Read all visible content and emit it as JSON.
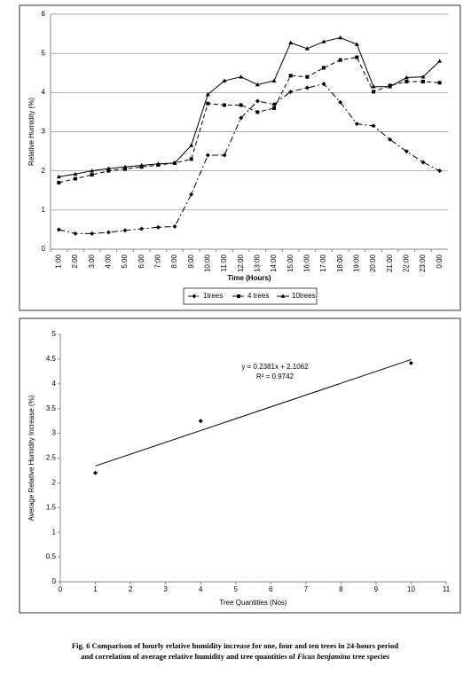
{
  "chart_data": [
    {
      "type": "line",
      "y_label": "Relative Humidity (%)",
      "x_label": "Time (Hours)",
      "categories": [
        "1:00",
        "2:00",
        "3:00",
        "4:00",
        "5:00",
        "6:00",
        "7:00",
        "8:00",
        "9:00",
        "10:00",
        "11:00",
        "12:00",
        "13:00",
        "14:00",
        "15:00",
        "16:00",
        "17:00",
        "18:00",
        "19:00",
        "20:00",
        "21:00",
        "22:00",
        "23:00",
        "0:00"
      ],
      "series": [
        {
          "name": "1trees",
          "color": "#000000",
          "dash": "7 3 2 3",
          "marker": "diamond",
          "values": [
            0.5,
            0.4,
            0.4,
            0.43,
            0.48,
            0.52,
            0.56,
            0.58,
            1.4,
            2.4,
            2.4,
            3.35,
            3.78,
            3.7,
            4.02,
            4.12,
            4.22,
            3.75,
            3.2,
            3.15,
            2.8,
            2.5,
            2.22,
            2.0
          ]
        },
        {
          "name": "4 trees",
          "color": "#000000",
          "dash": "5 3",
          "marker": "square",
          "values": [
            1.7,
            1.8,
            1.9,
            2.0,
            2.05,
            2.1,
            2.15,
            2.2,
            2.3,
            3.72,
            3.68,
            3.68,
            3.5,
            3.6,
            4.43,
            4.4,
            4.63,
            4.83,
            4.9,
            4.02,
            4.18,
            4.28,
            4.28,
            4.25
          ]
        },
        {
          "name": "10trees",
          "color": "#000000",
          "dash": "none",
          "marker": "triangle",
          "values": [
            1.85,
            1.92,
            2.0,
            2.06,
            2.1,
            2.14,
            2.18,
            2.2,
            2.65,
            3.95,
            4.3,
            4.4,
            4.2,
            4.3,
            5.27,
            5.12,
            5.3,
            5.4,
            5.23,
            4.15,
            4.15,
            4.38,
            4.4,
            4.8
          ]
        }
      ],
      "ylim": [
        0,
        6
      ],
      "yticks": [
        0,
        1,
        2,
        3,
        4,
        5,
        6
      ],
      "grid": true,
      "legend": "bottom"
    },
    {
      "type": "scatter",
      "y_label": "Average Relative Humidity Increase (%)",
      "x_label": "Tree Quantities (Nos)",
      "x": [
        1,
        4,
        10
      ],
      "values": [
        2.2,
        3.25,
        4.42
      ],
      "color": "#000000",
      "trendline": {
        "x": [
          1,
          10
        ],
        "y": [
          2.34,
          4.49
        ]
      },
      "annotations": [
        "y = 0.2381x + 2.1062",
        "R² = 0.9742"
      ],
      "xlim": [
        0,
        11
      ],
      "xticks": [
        0,
        1,
        2,
        3,
        4,
        5,
        6,
        7,
        8,
        9,
        10,
        11
      ],
      "ylim": [
        0,
        5
      ],
      "yticks": [
        0,
        0.5,
        1,
        1.5,
        2,
        2.5,
        3,
        3.5,
        4,
        4.5,
        5
      ],
      "grid": false
    }
  ],
  "caption": {
    "line1": "Fig. 6 Comparison of hourly relative humidity increase for one, four and ten trees in 24-hours period",
    "line2_before": "and correlation of average relative humidity and tree quantities of ",
    "line2_italic": "Ficus  benjamina",
    "line2_after": " tree species"
  }
}
